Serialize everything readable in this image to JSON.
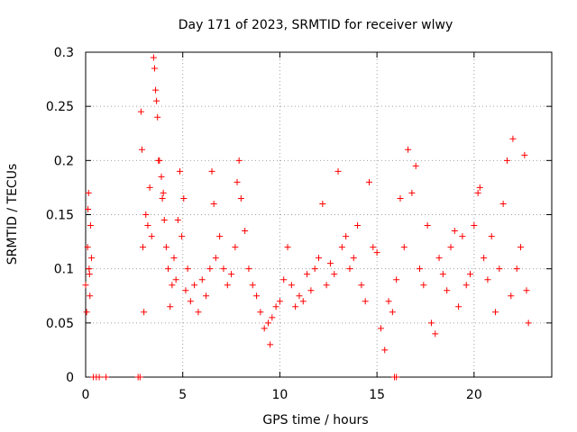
{
  "chart_data": {
    "type": "scatter",
    "title": "Day 171 of 2023, SRMTID for receiver wlwy",
    "xlabel": "GPS time / hours",
    "ylabel": "SRMTID / TECUs",
    "xlim": [
      0,
      24
    ],
    "ylim": [
      0,
      0.3
    ],
    "x_ticks": [
      0,
      5,
      10,
      15,
      20
    ],
    "x_tick_labels": [
      "0",
      "5",
      "10",
      "15",
      "20"
    ],
    "y_ticks": [
      0,
      0.05,
      0.1,
      0.15,
      0.2,
      0.25,
      0.3
    ],
    "y_tick_labels": [
      "0",
      "0.05",
      "0.1",
      "0.15",
      "0.2",
      "0.25",
      "0.3"
    ],
    "grid": true,
    "marker": "+",
    "series": [
      {
        "name": "SRMTID",
        "color": "#ff0000",
        "points": [
          [
            0.0,
            0.085
          ],
          [
            0.05,
            0.06
          ],
          [
            0.1,
            0.12
          ],
          [
            0.15,
            0.17
          ],
          [
            0.2,
            0.095
          ],
          [
            0.25,
            0.14
          ],
          [
            0.3,
            0.11
          ],
          [
            0.12,
            0.155
          ],
          [
            0.18,
            0.1
          ],
          [
            0.22,
            0.075
          ],
          [
            0.4,
            0.0
          ],
          [
            0.55,
            0.0
          ],
          [
            0.7,
            0.0
          ],
          [
            1.05,
            0.0
          ],
          [
            2.7,
            0.0
          ],
          [
            2.8,
            0.0
          ],
          [
            15.9,
            0.0
          ],
          [
            16.0,
            0.0
          ],
          [
            2.85,
            0.245
          ],
          [
            2.9,
            0.21
          ],
          [
            2.95,
            0.12
          ],
          [
            3.0,
            0.06
          ],
          [
            3.1,
            0.15
          ],
          [
            3.2,
            0.14
          ],
          [
            3.3,
            0.175
          ],
          [
            3.4,
            0.13
          ],
          [
            3.5,
            0.295
          ],
          [
            3.55,
            0.285
          ],
          [
            3.6,
            0.265
          ],
          [
            3.65,
            0.255
          ],
          [
            3.7,
            0.24
          ],
          [
            3.75,
            0.2
          ],
          [
            3.8,
            0.2
          ],
          [
            3.9,
            0.185
          ],
          [
            3.95,
            0.165
          ],
          [
            4.0,
            0.17
          ],
          [
            4.05,
            0.145
          ],
          [
            4.15,
            0.12
          ],
          [
            4.25,
            0.1
          ],
          [
            4.35,
            0.065
          ],
          [
            4.45,
            0.085
          ],
          [
            4.55,
            0.11
          ],
          [
            4.65,
            0.09
          ],
          [
            4.75,
            0.145
          ],
          [
            4.85,
            0.19
          ],
          [
            4.95,
            0.13
          ],
          [
            5.05,
            0.165
          ],
          [
            5.15,
            0.08
          ],
          [
            5.25,
            0.1
          ],
          [
            5.4,
            0.07
          ],
          [
            5.6,
            0.085
          ],
          [
            5.8,
            0.06
          ],
          [
            6.0,
            0.09
          ],
          [
            6.2,
            0.075
          ],
          [
            6.4,
            0.1
          ],
          [
            6.5,
            0.19
          ],
          [
            6.6,
            0.16
          ],
          [
            6.7,
            0.11
          ],
          [
            6.9,
            0.13
          ],
          [
            7.1,
            0.1
          ],
          [
            7.3,
            0.085
          ],
          [
            7.5,
            0.095
          ],
          [
            7.7,
            0.12
          ],
          [
            7.8,
            0.18
          ],
          [
            7.9,
            0.2
          ],
          [
            8.0,
            0.165
          ],
          [
            8.2,
            0.135
          ],
          [
            8.4,
            0.1
          ],
          [
            8.6,
            0.085
          ],
          [
            8.8,
            0.075
          ],
          [
            9.0,
            0.06
          ],
          [
            9.2,
            0.045
          ],
          [
            9.4,
            0.05
          ],
          [
            9.5,
            0.03
          ],
          [
            9.6,
            0.055
          ],
          [
            9.8,
            0.065
          ],
          [
            10.0,
            0.07
          ],
          [
            10.2,
            0.09
          ],
          [
            10.4,
            0.12
          ],
          [
            10.6,
            0.085
          ],
          [
            10.8,
            0.065
          ],
          [
            11.0,
            0.075
          ],
          [
            11.2,
            0.07
          ],
          [
            11.4,
            0.095
          ],
          [
            11.6,
            0.08
          ],
          [
            11.8,
            0.1
          ],
          [
            12.0,
            0.11
          ],
          [
            12.2,
            0.16
          ],
          [
            12.4,
            0.085
          ],
          [
            12.6,
            0.105
          ],
          [
            12.8,
            0.095
          ],
          [
            13.0,
            0.19
          ],
          [
            13.2,
            0.12
          ],
          [
            13.4,
            0.13
          ],
          [
            13.6,
            0.1
          ],
          [
            13.8,
            0.11
          ],
          [
            14.0,
            0.14
          ],
          [
            14.2,
            0.085
          ],
          [
            14.4,
            0.07
          ],
          [
            14.6,
            0.18
          ],
          [
            14.8,
            0.12
          ],
          [
            15.0,
            0.115
          ],
          [
            15.2,
            0.045
          ],
          [
            15.4,
            0.025
          ],
          [
            15.6,
            0.07
          ],
          [
            15.8,
            0.06
          ],
          [
            16.0,
            0.09
          ],
          [
            16.2,
            0.165
          ],
          [
            16.4,
            0.12
          ],
          [
            16.6,
            0.21
          ],
          [
            16.8,
            0.17
          ],
          [
            17.0,
            0.195
          ],
          [
            17.2,
            0.1
          ],
          [
            17.4,
            0.085
          ],
          [
            17.6,
            0.14
          ],
          [
            17.8,
            0.05
          ],
          [
            18.0,
            0.04
          ],
          [
            18.2,
            0.11
          ],
          [
            18.4,
            0.095
          ],
          [
            18.6,
            0.08
          ],
          [
            18.8,
            0.12
          ],
          [
            19.0,
            0.135
          ],
          [
            19.2,
            0.065
          ],
          [
            19.4,
            0.13
          ],
          [
            19.6,
            0.085
          ],
          [
            19.8,
            0.095
          ],
          [
            20.0,
            0.14
          ],
          [
            20.2,
            0.17
          ],
          [
            20.3,
            0.175
          ],
          [
            20.5,
            0.11
          ],
          [
            20.7,
            0.09
          ],
          [
            20.9,
            0.13
          ],
          [
            21.1,
            0.06
          ],
          [
            21.3,
            0.1
          ],
          [
            21.5,
            0.16
          ],
          [
            21.7,
            0.2
          ],
          [
            21.9,
            0.075
          ],
          [
            22.0,
            0.22
          ],
          [
            22.2,
            0.1
          ],
          [
            22.4,
            0.12
          ],
          [
            22.6,
            0.205
          ],
          [
            22.7,
            0.08
          ],
          [
            22.8,
            0.05
          ]
        ]
      }
    ]
  }
}
